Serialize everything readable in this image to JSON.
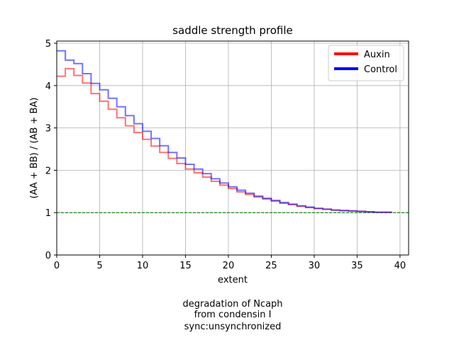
{
  "chart_data": {
    "type": "line",
    "title": "saddle strength profile",
    "xlabel": "extent",
    "ylabel": "(AA + BB) / (AB + BA)",
    "xlim": [
      0,
      41
    ],
    "ylim": [
      0,
      5.05
    ],
    "xticks": [
      0,
      5,
      10,
      15,
      20,
      25,
      30,
      35,
      40
    ],
    "yticks": [
      0,
      1,
      2,
      3,
      4,
      5
    ],
    "grid": true,
    "legend_position": "top-right",
    "step": "post",
    "x": [
      0,
      1,
      2,
      3,
      4,
      5,
      6,
      7,
      8,
      9,
      10,
      11,
      12,
      13,
      14,
      15,
      16,
      17,
      18,
      19,
      20,
      21,
      22,
      23,
      24,
      25,
      26,
      27,
      28,
      29,
      30,
      31,
      32,
      33,
      34,
      35,
      36,
      37,
      38,
      39
    ],
    "series": [
      {
        "name": "Auxin",
        "color": "#ff0000",
        "values": [
          4.22,
          4.4,
          4.24,
          4.06,
          3.81,
          3.63,
          3.44,
          3.24,
          3.05,
          2.89,
          2.73,
          2.57,
          2.42,
          2.28,
          2.16,
          2.03,
          1.94,
          1.84,
          1.74,
          1.65,
          1.57,
          1.49,
          1.43,
          1.37,
          1.32,
          1.27,
          1.22,
          1.19,
          1.15,
          1.12,
          1.1,
          1.08,
          1.06,
          1.05,
          1.04,
          1.03,
          1.02,
          1.01,
          1.01,
          1.0
        ]
      },
      {
        "name": "Control",
        "color": "#0000ff",
        "values": [
          4.82,
          4.6,
          4.52,
          4.28,
          4.05,
          3.9,
          3.7,
          3.5,
          3.29,
          3.1,
          2.92,
          2.75,
          2.58,
          2.42,
          2.29,
          2.14,
          2.03,
          1.92,
          1.8,
          1.7,
          1.61,
          1.53,
          1.46,
          1.39,
          1.34,
          1.29,
          1.24,
          1.2,
          1.16,
          1.13,
          1.1,
          1.08,
          1.06,
          1.05,
          1.04,
          1.03,
          1.02,
          1.01,
          1.01,
          1.0
        ]
      }
    ],
    "reference_line": {
      "y": 1,
      "color": "#008000",
      "style": "dashed"
    },
    "annotation": {
      "lines": [
        "degradation of Ncaph",
        "from condensin I",
        "sync:unsynchronized"
      ]
    }
  }
}
